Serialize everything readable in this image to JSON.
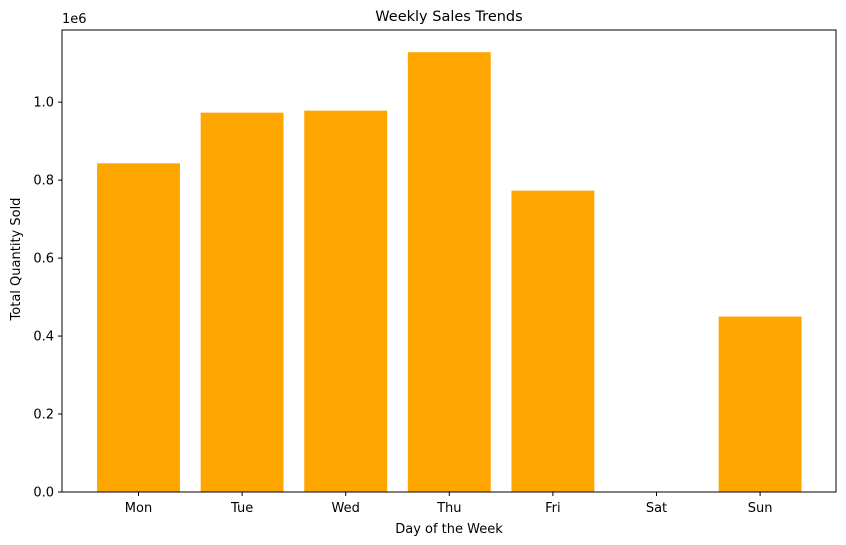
{
  "chart_data": {
    "type": "bar",
    "title": "Weekly Sales Trends",
    "xlabel": "Day of the Week",
    "ylabel": "Total Quantity Sold",
    "categories": [
      "Mon",
      "Tue",
      "Wed",
      "Thu",
      "Fri",
      "Sat",
      "Sun"
    ],
    "values": [
      843000,
      973000,
      978000,
      1128000,
      773000,
      0,
      450000
    ],
    "ylim": [
      0,
      1185000
    ],
    "yticks": [
      0,
      200000,
      400000,
      600000,
      800000,
      1000000
    ],
    "ytick_labels": [
      "0.0",
      "0.2",
      "0.4",
      "0.6",
      "0.8",
      "1.0"
    ],
    "y_offset_label": "1e6",
    "bar_color": "#ffa500",
    "grid": false,
    "legend": "none"
  }
}
